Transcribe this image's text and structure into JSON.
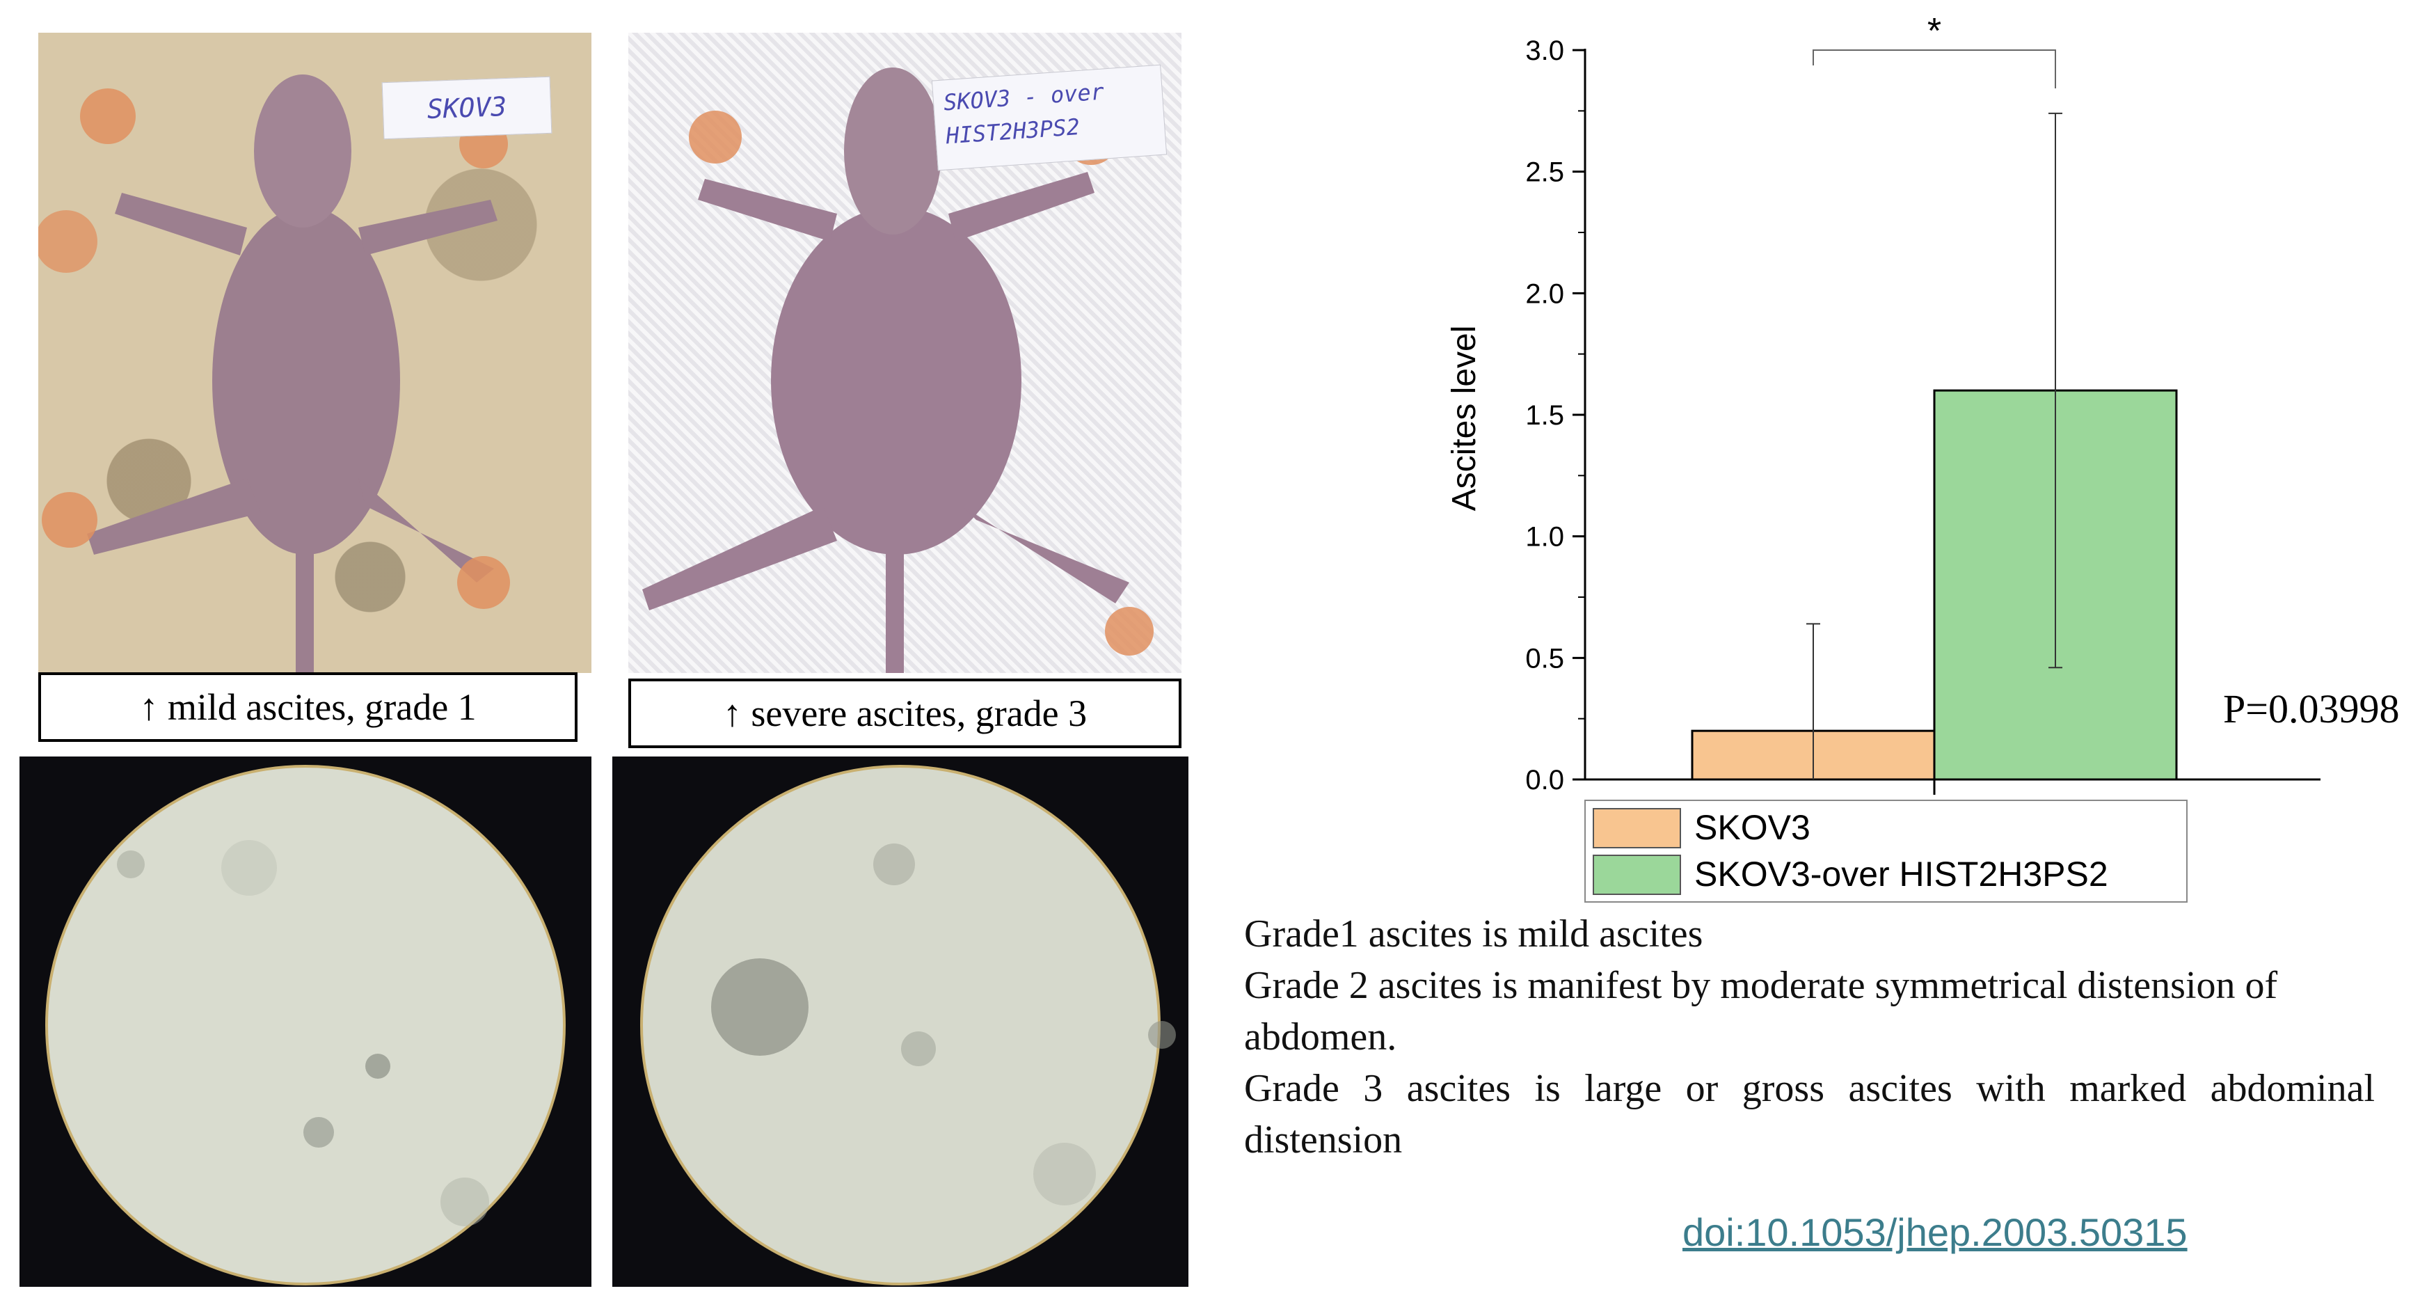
{
  "photos": {
    "mild": {
      "label_sticker": "SKOV3",
      "caption": "↑ mild ascites, grade 1"
    },
    "severe": {
      "label_sticker_line1": "SKOV3 - over",
      "label_sticker_line2": "HIST2H3PS2",
      "caption": "↑ severe ascites, grade 3"
    }
  },
  "chart_data": {
    "type": "bar",
    "categories": [
      "SKOV3",
      "SKOV3-over HIST2H3PS2"
    ],
    "values": [
      0.2,
      1.6
    ],
    "error_upper": [
      0.64,
      2.74
    ],
    "error_lower": [
      0.0,
      0.46
    ],
    "colors": [
      "#f8c590",
      "#9bd79a"
    ],
    "ylabel": "Ascites level",
    "ylim": [
      0,
      3.0
    ],
    "yticks": [
      "0.0",
      "0.5",
      "1.0",
      "1.5",
      "2.0",
      "2.5",
      "3.0"
    ],
    "yticks_values": [
      0,
      0.5,
      1.0,
      1.5,
      2.0,
      2.5,
      3.0
    ],
    "legend": [
      "SKOV3",
      "SKOV3-over HIST2H3PS2"
    ],
    "legend_position": "bottom",
    "significance": "*",
    "grid": false
  },
  "pvalue": "P=0.03998",
  "description": [
    "Grade1 ascites is mild ascites",
    "Grade 2 ascites is manifest by moderate symmetrical distension of abdomen.",
    "Grade 3 ascites is large or gross ascites with marked abdominal distension"
  ],
  "doi": "doi:10.1053/jhep.2003.50315"
}
